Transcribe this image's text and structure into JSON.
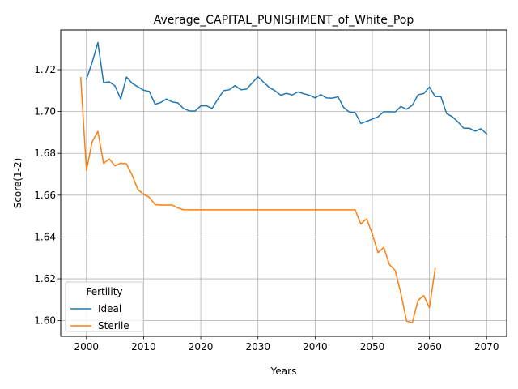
{
  "chart_data": {
    "type": "line",
    "title": "Average_CAPITAL_PUNISHMENT_of_White_Pop",
    "xlabel": "Years",
    "ylabel": "Score(1-2)",
    "xlim": [
      1995.5,
      2073.5
    ],
    "ylim": [
      1.5925,
      1.739
    ],
    "xticks": [
      2000,
      2010,
      2020,
      2030,
      2040,
      2050,
      2060,
      2070
    ],
    "xtick_labels": [
      "2000",
      "2010",
      "2020",
      "2030",
      "2040",
      "2050",
      "2060",
      "2070"
    ],
    "yticks": [
      1.6,
      1.62,
      1.64,
      1.66,
      1.68,
      1.7,
      1.72
    ],
    "ytick_labels": [
      "1.60",
      "1.62",
      "1.64",
      "1.66",
      "1.68",
      "1.70",
      "1.72"
    ],
    "grid": true,
    "legend": {
      "title": "Fertility",
      "placement": "lower-left"
    },
    "series": [
      {
        "name": "Ideal",
        "color": "#1f77b4",
        "x": [
          2000,
          2001,
          2002,
          2003,
          2004,
          2005,
          2006,
          2007,
          2008,
          2009,
          2010,
          2011,
          2012,
          2013,
          2014,
          2015,
          2016,
          2017,
          2018,
          2019,
          2020,
          2021,
          2022,
          2023,
          2024,
          2025,
          2026,
          2027,
          2028,
          2029,
          2030,
          2031,
          2032,
          2033,
          2034,
          2035,
          2036,
          2037,
          2038,
          2039,
          2040,
          2041,
          2042,
          2043,
          2044,
          2045,
          2046,
          2047,
          2048,
          2049,
          2050,
          2051,
          2052,
          2053,
          2054,
          2055,
          2056,
          2057,
          2058,
          2059,
          2060,
          2061,
          2062,
          2063,
          2064,
          2065,
          2066,
          2067,
          2068,
          2069,
          2070
        ],
        "values": [
          1.7155,
          1.7235,
          1.733,
          1.7138,
          1.7142,
          1.7122,
          1.706,
          1.7165,
          1.7135,
          1.7118,
          1.7102,
          1.7096,
          1.7035,
          1.7043,
          1.706,
          1.7046,
          1.7041,
          1.7014,
          1.7003,
          1.7002,
          1.7027,
          1.7027,
          1.7015,
          1.706,
          1.71,
          1.7104,
          1.7124,
          1.7104,
          1.7107,
          1.7137,
          1.7167,
          1.714,
          1.7115,
          1.7099,
          1.7078,
          1.7087,
          1.7079,
          1.7094,
          1.7085,
          1.7078,
          1.7065,
          1.7081,
          1.7065,
          1.7064,
          1.707,
          1.7019,
          1.6997,
          1.6995,
          1.6943,
          1.6953,
          1.6964,
          1.6975,
          1.6999,
          1.6999,
          1.6998,
          1.7024,
          1.7011,
          1.703,
          1.708,
          1.7086,
          1.7117,
          1.7071,
          1.7071,
          1.699,
          1.6975,
          1.695,
          1.692,
          1.692,
          1.6906,
          1.6918,
          1.6893
        ]
      },
      {
        "name": "Sterile",
        "color": "#ff7f0e",
        "x": [
          1999,
          2000,
          2001,
          2002,
          2003,
          2004,
          2005,
          2006,
          2007,
          2008,
          2009,
          2010,
          2011,
          2012,
          2013,
          2014,
          2015,
          2016,
          2017,
          2018,
          2019,
          2020,
          2021,
          2022,
          2023,
          2024,
          2025,
          2026,
          2027,
          2028,
          2029,
          2030,
          2031,
          2032,
          2033,
          2034,
          2035,
          2036,
          2037,
          2038,
          2039,
          2040,
          2041,
          2042,
          2043,
          2044,
          2045,
          2046,
          2047,
          2048,
          2049,
          2050,
          2051,
          2052,
          2053,
          2054,
          2055,
          2056,
          2057,
          2058,
          2059,
          2060,
          2061
        ],
        "values": [
          1.7162,
          1.6718,
          1.6855,
          1.6905,
          1.6752,
          1.6773,
          1.674,
          1.6753,
          1.675,
          1.6695,
          1.6627,
          1.6604,
          1.659,
          1.6555,
          1.6553,
          1.6553,
          1.6553,
          1.6539,
          1.653,
          1.653,
          1.653,
          1.653,
          1.653,
          1.653,
          1.653,
          1.653,
          1.653,
          1.653,
          1.653,
          1.653,
          1.653,
          1.653,
          1.653,
          1.653,
          1.653,
          1.653,
          1.653,
          1.653,
          1.653,
          1.653,
          1.653,
          1.653,
          1.653,
          1.653,
          1.653,
          1.653,
          1.653,
          1.653,
          1.653,
          1.6462,
          1.6487,
          1.6415,
          1.6325,
          1.635,
          1.6268,
          1.624,
          1.613,
          1.5998,
          1.599,
          1.6097,
          1.612,
          1.6062,
          1.625
        ]
      }
    ]
  }
}
